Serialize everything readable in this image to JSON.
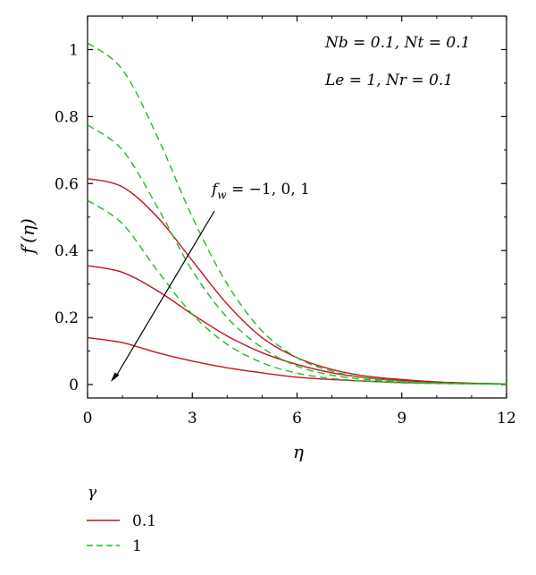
{
  "chart_data": {
    "type": "line",
    "title": "",
    "xlabel": "η",
    "ylabel": "f′(η)",
    "xlim": [
      0,
      12
    ],
    "ylim": [
      -0.04,
      1.1
    ],
    "xticks": [
      0,
      3,
      6,
      9,
      12
    ],
    "yticks": [
      0,
      0.2,
      0.4,
      0.6,
      0.8,
      1
    ],
    "grid": false,
    "annotations": [
      "Nb = 0.1, Nt = 0.1",
      "Le = 1, Nr = 0.1",
      "f_w = −1, 0, 1"
    ],
    "legend": {
      "title": "γ",
      "placement": "bottom-left",
      "entries": [
        "0.1",
        "1"
      ]
    },
    "x": [
      0,
      1,
      2,
      3,
      4,
      5,
      6,
      7,
      8,
      9,
      10,
      11,
      12
    ],
    "series": [
      {
        "name": "0.1",
        "style": "solid",
        "color": "#c0141c",
        "values": [
          0.615,
          0.59,
          0.5,
          0.37,
          0.24,
          0.14,
          0.08,
          0.045,
          0.025,
          0.015,
          0.008,
          0.004,
          0.002
        ]
      },
      {
        "name": "0.1",
        "style": "solid",
        "color": "#c0141c",
        "values": [
          0.355,
          0.335,
          0.28,
          0.21,
          0.145,
          0.095,
          0.06,
          0.035,
          0.02,
          0.012,
          0.007,
          0.004,
          0.002
        ]
      },
      {
        "name": "0.1",
        "style": "solid",
        "color": "#c0141c",
        "values": [
          0.14,
          0.125,
          0.095,
          0.07,
          0.05,
          0.035,
          0.022,
          0.015,
          0.01,
          0.006,
          0.004,
          0.003,
          0.002
        ]
      },
      {
        "name": "1",
        "style": "dashed",
        "color": "#22bb22",
        "values": [
          1.02,
          0.94,
          0.74,
          0.5,
          0.3,
          0.16,
          0.08,
          0.04,
          0.02,
          0.01,
          0.005,
          0.003,
          0.002
        ]
      },
      {
        "name": "1",
        "style": "dashed",
        "color": "#22bb22",
        "values": [
          0.775,
          0.7,
          0.53,
          0.34,
          0.2,
          0.11,
          0.055,
          0.028,
          0.015,
          0.008,
          0.004,
          0.002,
          0.001
        ]
      },
      {
        "name": "1",
        "style": "dashed",
        "color": "#22bb22",
        "values": [
          0.55,
          0.48,
          0.34,
          0.21,
          0.12,
          0.065,
          0.034,
          0.018,
          0.01,
          0.005,
          0.003,
          0.002,
          0.001
        ]
      }
    ]
  }
}
